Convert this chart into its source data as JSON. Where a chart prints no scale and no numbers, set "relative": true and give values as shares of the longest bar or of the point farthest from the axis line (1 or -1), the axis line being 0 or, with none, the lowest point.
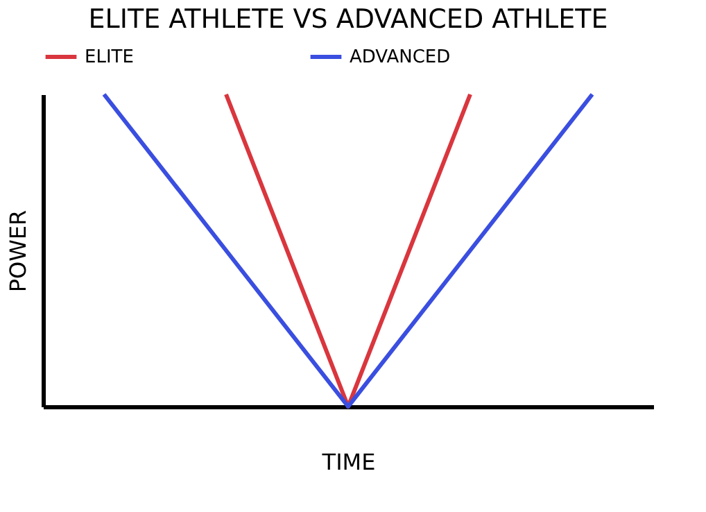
{
  "chart_data": {
    "type": "line",
    "title": "ELITE ATHLETE VS ADVANCED ATHLETE",
    "xlabel": "TIME",
    "ylabel": "POWER",
    "relative": true,
    "legend": "top",
    "grid": false,
    "categories": [
      null,
      null,
      null,
      null,
      null
    ],
    "series": [
      {
        "name": "ELITE",
        "color": "#d9363e",
        "values": [
          null,
          1,
          0,
          1,
          null
        ]
      },
      {
        "name": "ADVANCED",
        "color": "#3a4ee0",
        "values": [
          1,
          0.5,
          0,
          0.5,
          1
        ]
      }
    ]
  }
}
